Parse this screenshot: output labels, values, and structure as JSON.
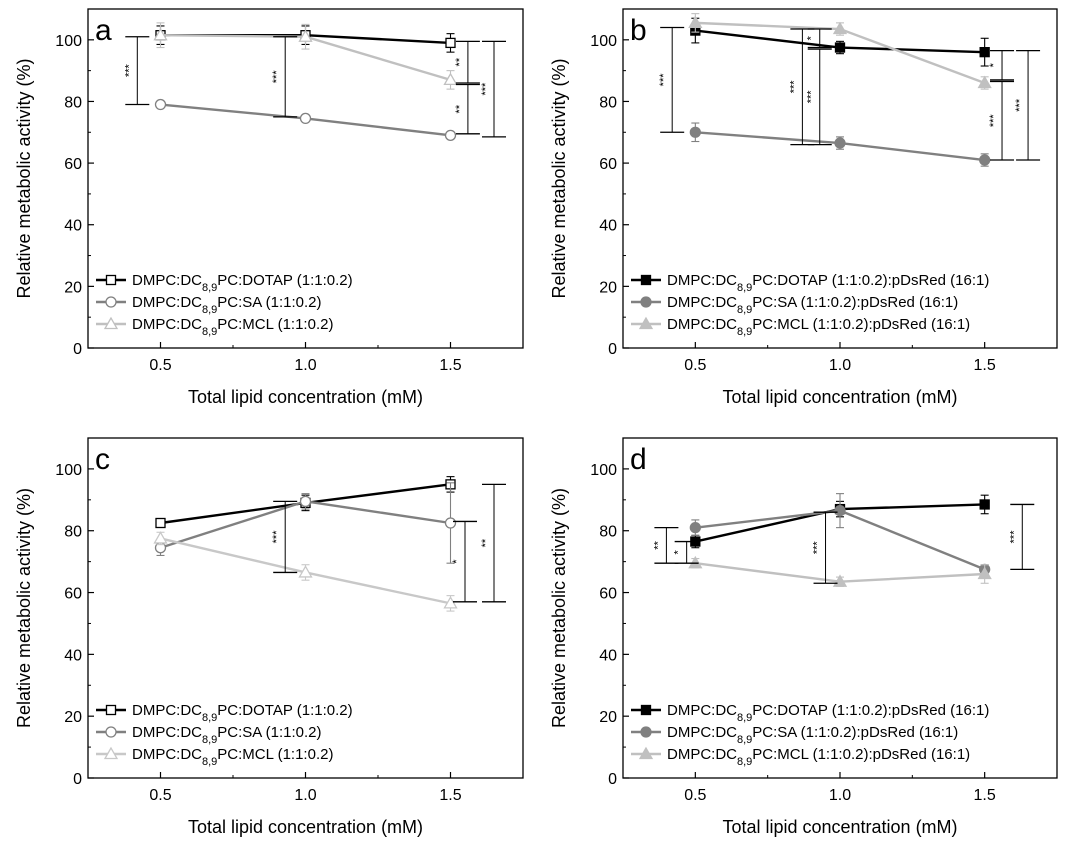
{
  "figure": {
    "xlabel": "Total lipid concentration (mM)",
    "ylabel": "Relative metabolic activity (%)"
  },
  "chart_data": [
    {
      "type": "line",
      "panel": "a",
      "x": [
        0.5,
        1.0,
        1.5
      ],
      "xlim": [
        0.25,
        1.75
      ],
      "ylim": [
        0,
        110
      ],
      "xticks": [
        0.5,
        1.0,
        1.5
      ],
      "yticks": [
        0,
        20,
        40,
        60,
        80,
        100
      ],
      "xlabel": "Total lipid concentration (mM)",
      "ylabel": "Relative metabolic activity (%)",
      "legend_position": "bottom-left",
      "series": [
        {
          "name": "DMPC:DC8,9PC:DOTAP (1:1:0.2)",
          "legend": {
            "pre": "DMPC:DC",
            "sub": "8,9",
            "post": "PC:DOTAP (1:1:0.2)"
          },
          "values": [
            101.5,
            101.5,
            99
          ],
          "errors": [
            3,
            3,
            3
          ],
          "color": "#000000",
          "marker": "square",
          "filled": false
        },
        {
          "name": "DMPC:DC8,9PC:SA (1:1:0.2)",
          "legend": {
            "pre": "DMPC:DC",
            "sub": "8,9",
            "post": "PC:SA (1:1:0.2)"
          },
          "values": [
            79,
            74.5,
            69
          ],
          "errors": [
            1,
            1,
            1
          ],
          "color": "#808080",
          "marker": "circle",
          "filled": false
        },
        {
          "name": "DMPC:DC8,9PC:MCL (1:1:0.2)",
          "legend": {
            "pre": "DMPC:DC",
            "sub": "8,9",
            "post": "PC:MCL (1:1:0.2)"
          },
          "values": [
            101.5,
            101,
            87
          ],
          "errors": [
            4,
            4,
            3
          ],
          "color": "#c0c0c0",
          "marker": "triangle",
          "filled": false
        }
      ],
      "significance": [
        {
          "x": 0.42,
          "y_low": 79,
          "y_high": 101,
          "label": "***"
        },
        {
          "x": 0.93,
          "y_low": 75,
          "y_high": 101,
          "label": "***"
        },
        {
          "x": 1.56,
          "y_low": 86,
          "y_high": 99.5,
          "label": "**"
        },
        {
          "x": 1.56,
          "y_low": 69.5,
          "y_high": 85.5,
          "label": "**"
        },
        {
          "x": 1.65,
          "y_low": 68.5,
          "y_high": 99.5,
          "label": "***"
        }
      ]
    },
    {
      "type": "line",
      "panel": "b",
      "x": [
        0.5,
        1.0,
        1.5
      ],
      "xlim": [
        0.25,
        1.75
      ],
      "ylim": [
        0,
        110
      ],
      "xticks": [
        0.5,
        1.0,
        1.5
      ],
      "yticks": [
        0,
        20,
        40,
        60,
        80,
        100
      ],
      "xlabel": "Total lipid concentration (mM)",
      "ylabel": "Relative metabolic activity (%)",
      "legend_position": "bottom-left",
      "series": [
        {
          "name": "DMPC:DC8,9PC:DOTAP (1:1:0.2):pDsRed (16:1)",
          "legend": {
            "pre": "DMPC:DC",
            "sub": "8,9",
            "post": "PC:DOTAP (1:1:0.2):pDsRed (16:1)"
          },
          "values": [
            103,
            97.5,
            96
          ],
          "errors": [
            4,
            2,
            4.5
          ],
          "color": "#000000",
          "marker": "square",
          "filled": true
        },
        {
          "name": "DMPC:DC8,9PC:SA (1:1:0.2):pDsRed (16:1)",
          "legend": {
            "pre": "DMPC:DC",
            "sub": "8,9",
            "post": "PC:SA (1:1:0.2):pDsRed (16:1)"
          },
          "values": [
            70,
            66.5,
            61
          ],
          "errors": [
            3,
            2,
            2
          ],
          "color": "#808080",
          "marker": "circle",
          "filled": true
        },
        {
          "name": "DMPC:DC8,9PC:MCL (1:1:0.2):pDsRed (16:1)",
          "legend": {
            "pre": "DMPC:DC",
            "sub": "8,9",
            "post": "PC:MCL (1:1:0.2):pDsRed (16:1)"
          },
          "values": [
            105.5,
            103.5,
            86
          ],
          "errors": [
            3,
            2,
            2
          ],
          "color": "#c0c0c0",
          "marker": "triangle",
          "filled": true
        }
      ],
      "significance": [
        {
          "x": 0.42,
          "y_low": 70,
          "y_high": 104,
          "label": "***"
        },
        {
          "x": 0.87,
          "y_low": 66,
          "y_high": 103.5,
          "label": "***"
        },
        {
          "x": 0.93,
          "y_low": 97.5,
          "y_high": 103.5,
          "label": "*"
        },
        {
          "x": 0.93,
          "y_low": 66,
          "y_high": 97,
          "label": "***"
        },
        {
          "x": 1.56,
          "y_low": 87,
          "y_high": 96.5,
          "label": "*"
        },
        {
          "x": 1.56,
          "y_low": 61,
          "y_high": 86.5,
          "label": "***"
        },
        {
          "x": 1.65,
          "y_low": 61,
          "y_high": 96.5,
          "label": "***"
        }
      ]
    },
    {
      "type": "line",
      "panel": "c",
      "x": [
        0.5,
        1.0,
        1.5
      ],
      "xlim": [
        0.25,
        1.75
      ],
      "ylim": [
        0,
        110
      ],
      "xticks": [
        0.5,
        1.0,
        1.5
      ],
      "yticks": [
        0,
        20,
        40,
        60,
        80,
        100
      ],
      "xlabel": "Total lipid concentration (mM)",
      "ylabel": "Relative metabolic activity (%)",
      "legend_position": "bottom-left",
      "series": [
        {
          "name": "DMPC:DC8,9PC:DOTAP (1:1:0.2)",
          "legend": {
            "pre": "DMPC:DC",
            "sub": "8,9",
            "post": "PC:DOTAP (1:1:0.2)"
          },
          "values": [
            82.5,
            89,
            95
          ],
          "errors": [
            1,
            2.5,
            2.5
          ],
          "color": "#000000",
          "marker": "square",
          "filled": false
        },
        {
          "name": "DMPC:DC8,9PC:SA (1:1:0.2)",
          "legend": {
            "pre": "DMPC:DC",
            "sub": "8,9",
            "post": "PC:SA (1:1:0.2)"
          },
          "values": [
            74.5,
            89.5,
            82.5
          ],
          "errors": [
            2.5,
            2.5,
            13
          ],
          "color": "#808080",
          "marker": "circle",
          "filled": false
        },
        {
          "name": "DMPC:DC8,9PC:MCL (1:1:0.2)",
          "legend": {
            "pre": "DMPC:DC",
            "sub": "8,9",
            "post": "PC:MCL (1:1:0.2)"
          },
          "values": [
            77.5,
            66.5,
            56.5
          ],
          "errors": [
            2,
            2.5,
            2.5
          ],
          "color": "#c8c8c8",
          "marker": "triangle",
          "filled": false
        }
      ],
      "significance": [
        {
          "x": 0.93,
          "y_low": 66.5,
          "y_high": 89.5,
          "label": "***"
        },
        {
          "x": 1.55,
          "y_low": 57,
          "y_high": 83,
          "label": "*"
        },
        {
          "x": 1.65,
          "y_low": 57,
          "y_high": 95,
          "label": "**"
        }
      ]
    },
    {
      "type": "line",
      "panel": "d",
      "x": [
        0.5,
        1.0,
        1.5
      ],
      "xlim": [
        0.25,
        1.75
      ],
      "ylim": [
        0,
        110
      ],
      "xticks": [
        0.5,
        1.0,
        1.5
      ],
      "yticks": [
        0,
        20,
        40,
        60,
        80,
        100
      ],
      "xlabel": "Total lipid concentration (mM)",
      "ylabel": "Relative metabolic activity (%)",
      "legend_position": "bottom-left",
      "series": [
        {
          "name": "DMPC:DC8,9PC:DOTAP (1:1:0.2):pDsRed (16:1)",
          "legend": {
            "pre": "DMPC:DC",
            "sub": "8,9",
            "post": "PC:DOTAP (1:1:0.2):pDsRed (16:1)"
          },
          "values": [
            76.5,
            87,
            88.5
          ],
          "errors": [
            2,
            2.5,
            3
          ],
          "color": "#000000",
          "marker": "square",
          "filled": true
        },
        {
          "name": "DMPC:DC8,9PC:SA (1:1:0.2):pDsRed (16:1)",
          "legend": {
            "pre": "DMPC:DC",
            "sub": "8,9",
            "post": "PC:SA (1:1:0.2):pDsRed (16:1)"
          },
          "values": [
            81,
            86.5,
            67.5
          ],
          "errors": [
            2.5,
            5.5,
            1.5
          ],
          "color": "#808080",
          "marker": "circle",
          "filled": true
        },
        {
          "name": "DMPC:DC8,9PC:MCL (1:1:0.2):pDsRed (16:1)",
          "legend": {
            "pre": "DMPC:DC",
            "sub": "8,9",
            "post": "PC:MCL (1:1:0.2):pDsRed (16:1)"
          },
          "values": [
            69.5,
            63.5,
            66
          ],
          "errors": [
            1.5,
            1.5,
            3
          ],
          "color": "#c0c0c0",
          "marker": "triangle",
          "filled": true
        }
      ],
      "significance": [
        {
          "x": 0.4,
          "y_low": 69.5,
          "y_high": 81,
          "label": "**"
        },
        {
          "x": 0.47,
          "y_low": 69.5,
          "y_high": 76.5,
          "label": "*"
        },
        {
          "x": 0.95,
          "y_low": 63,
          "y_high": 86,
          "label": "***"
        },
        {
          "x": 1.63,
          "y_low": 67.5,
          "y_high": 88.5,
          "label": "***"
        }
      ]
    }
  ]
}
